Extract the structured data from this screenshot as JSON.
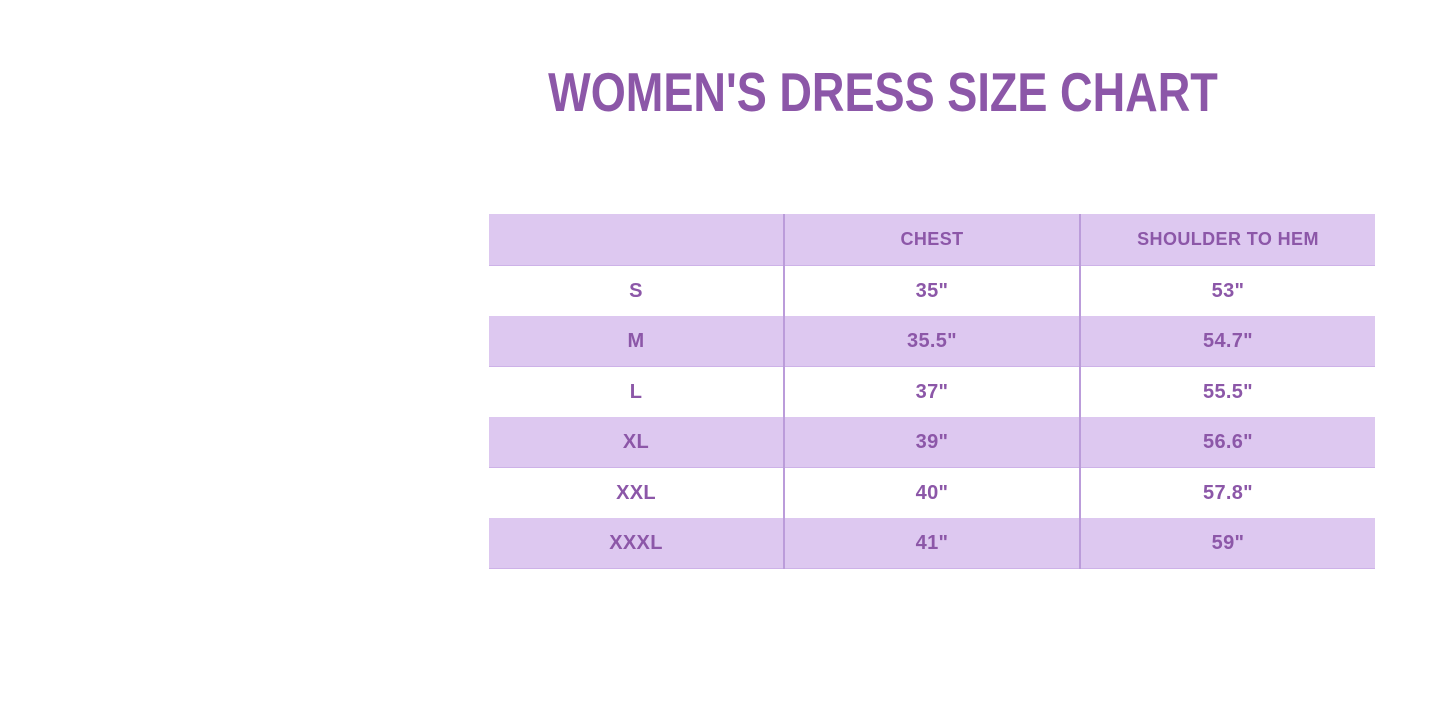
{
  "title": "WOMEN'S DRESS SIZE CHART",
  "colors": {
    "background": "#ffffff",
    "title_text": "#8c57a8",
    "table_text": "#8c57a8",
    "band_fill": "#ddc8f0",
    "column_divider": "#bb9cda"
  },
  "chart_data": {
    "type": "table",
    "title": "WOMEN'S DRESS SIZE CHART",
    "columns": [
      "",
      "CHEST",
      "SHOULDER TO HEM"
    ],
    "rows": [
      {
        "size": "S",
        "chest": "35\"",
        "shoulder_to_hem": "53\""
      },
      {
        "size": "M",
        "chest": "35.5\"",
        "shoulder_to_hem": "54.7\""
      },
      {
        "size": "L",
        "chest": "37\"",
        "shoulder_to_hem": "55.5\""
      },
      {
        "size": "XL",
        "chest": "39\"",
        "shoulder_to_hem": "56.6\""
      },
      {
        "size": "XXL",
        "chest": "40\"",
        "shoulder_to_hem": "57.8\""
      },
      {
        "size": "XXXL",
        "chest": "41\"",
        "shoulder_to_hem": "59\""
      }
    ],
    "layout": {
      "row_striping": "header and even data rows lavender, odd data rows white",
      "grid": "vertical column dividers only"
    }
  }
}
